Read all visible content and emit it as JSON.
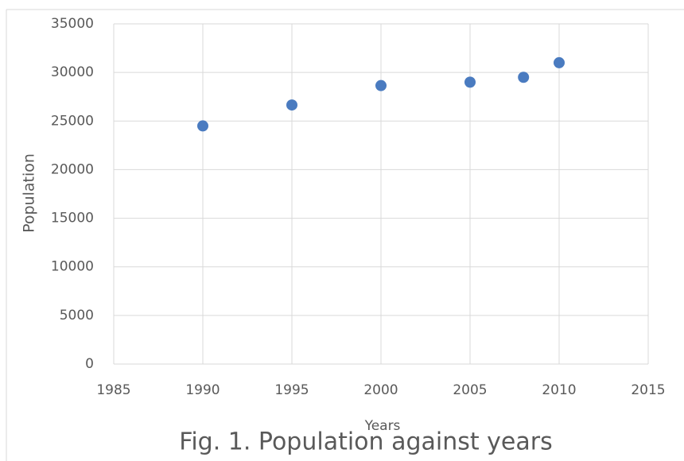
{
  "chart_data": {
    "type": "scatter",
    "caption": "Fig. 1. Population against years",
    "x_label": "Years",
    "y_label": "Population",
    "series": [
      {
        "name": "Population",
        "color": "#4a7bc0",
        "x": [
          1990,
          1995,
          2000,
          2005,
          2008,
          2010
        ],
        "values": [
          24500,
          26650,
          28650,
          29000,
          29500,
          31000
        ]
      }
    ],
    "xlim": [
      1985,
      2015
    ],
    "xticks": [
      1985,
      1990,
      1995,
      2000,
      2005,
      2010,
      2015
    ],
    "ylim": [
      0,
      35000
    ],
    "yticks": [
      0,
      5000,
      10000,
      15000,
      20000,
      25000,
      30000,
      35000
    ],
    "grid": true
  }
}
